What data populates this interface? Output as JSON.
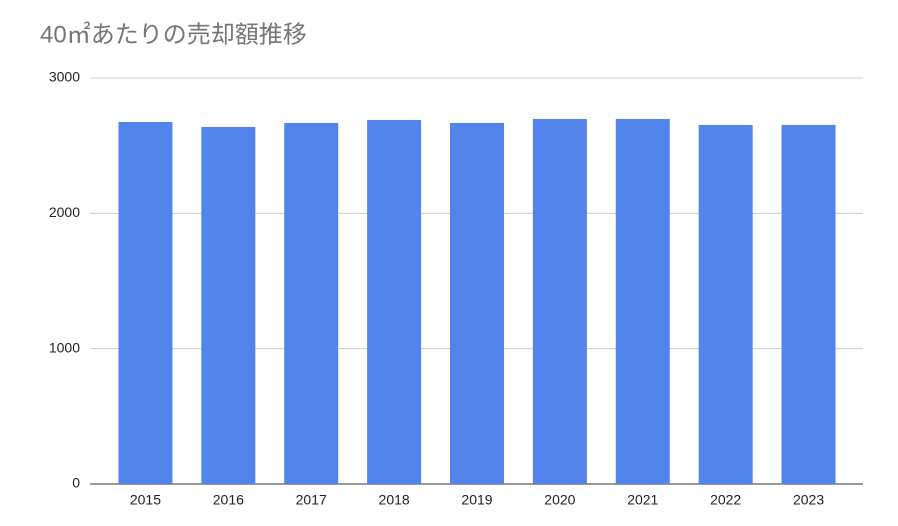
{
  "chart_data": {
    "type": "bar",
    "title": "40㎡あたりの売却額推移",
    "categories": [
      "2015",
      "2016",
      "2017",
      "2018",
      "2019",
      "2020",
      "2021",
      "2022",
      "2023"
    ],
    "values": [
      2675,
      2638,
      2668,
      2690,
      2668,
      2697,
      2697,
      2653,
      2653
    ],
    "color": "#5384ec",
    "ylim": [
      0,
      3000
    ],
    "yticks": [
      0,
      1000,
      2000,
      3000
    ],
    "grid": true
  }
}
